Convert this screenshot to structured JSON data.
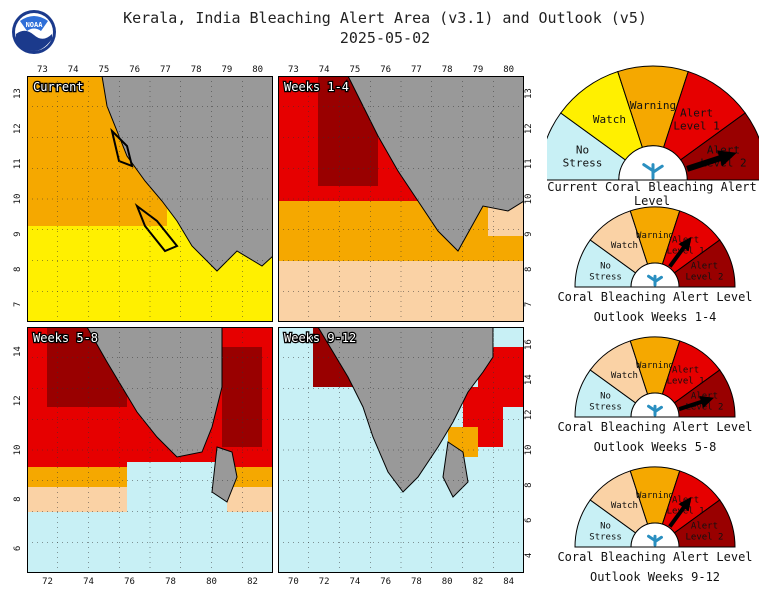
{
  "header": {
    "title": "Kerala, India Bleaching Alert Area (v3.1) and Outlook (v5)",
    "date": "2025-05-02",
    "logo_text": "NOAA"
  },
  "colors": {
    "no_stress": "#c8f0f5",
    "watch": "#fff000",
    "warning": "#f5a800",
    "alert1": "#e60000",
    "alert2": "#990000",
    "outlook_watch": "#fad2a5",
    "land": "#999999"
  },
  "maps": [
    {
      "id": "current",
      "label": "Current",
      "x_ticks": [
        "73",
        "74",
        "75",
        "76",
        "77",
        "78",
        "79",
        "80"
      ],
      "y_ticks": [
        "7",
        "8",
        "9",
        "10",
        "11",
        "12",
        "13"
      ],
      "tick_side": "left"
    },
    {
      "id": "weeks1-4",
      "label": "Weeks 1-4",
      "x_ticks": [
        "73",
        "74",
        "75",
        "76",
        "77",
        "78",
        "79",
        "80"
      ],
      "y_ticks": [
        "7",
        "8",
        "9",
        "10",
        "11",
        "12",
        "13"
      ],
      "tick_side": "right"
    },
    {
      "id": "weeks5-8",
      "label": "Weeks 5-8",
      "x_ticks": [
        "72",
        "74",
        "76",
        "78",
        "80",
        "82"
      ],
      "y_ticks": [
        "6",
        "8",
        "10",
        "12",
        "14"
      ],
      "tick_side": "left"
    },
    {
      "id": "weeks9-12",
      "label": "Weeks 9-12",
      "x_ticks": [
        "70",
        "72",
        "74",
        "76",
        "78",
        "80",
        "82",
        "84"
      ],
      "y_ticks": [
        "4",
        "6",
        "8",
        "10",
        "12",
        "14",
        "16"
      ],
      "tick_side": "right"
    }
  ],
  "gauges": [
    {
      "caption1": "Current Coral Bleaching Alert Level",
      "caption2": "",
      "level": "Alert Level 2",
      "outlook": false
    },
    {
      "caption1": "Coral Bleaching Alert Level",
      "caption2": "Outlook Weeks 1-4",
      "level": "Alert Level 1",
      "outlook": true
    },
    {
      "caption1": "Coral Bleaching Alert Level",
      "caption2": "Outlook Weeks 5-8",
      "level": "Alert Level 2",
      "outlook": true
    },
    {
      "caption1": "Coral Bleaching Alert Level",
      "caption2": "Outlook Weeks 9-12",
      "level": "Alert Level 1",
      "outlook": true
    }
  ],
  "gauge_segments": {
    "no_stress": [
      "No",
      "Stress"
    ],
    "watch": [
      "Watch"
    ],
    "warning": [
      "Warning"
    ],
    "alert1": [
      "Alert",
      "Level 1"
    ],
    "alert2": [
      "Alert",
      "Level 2"
    ]
  }
}
